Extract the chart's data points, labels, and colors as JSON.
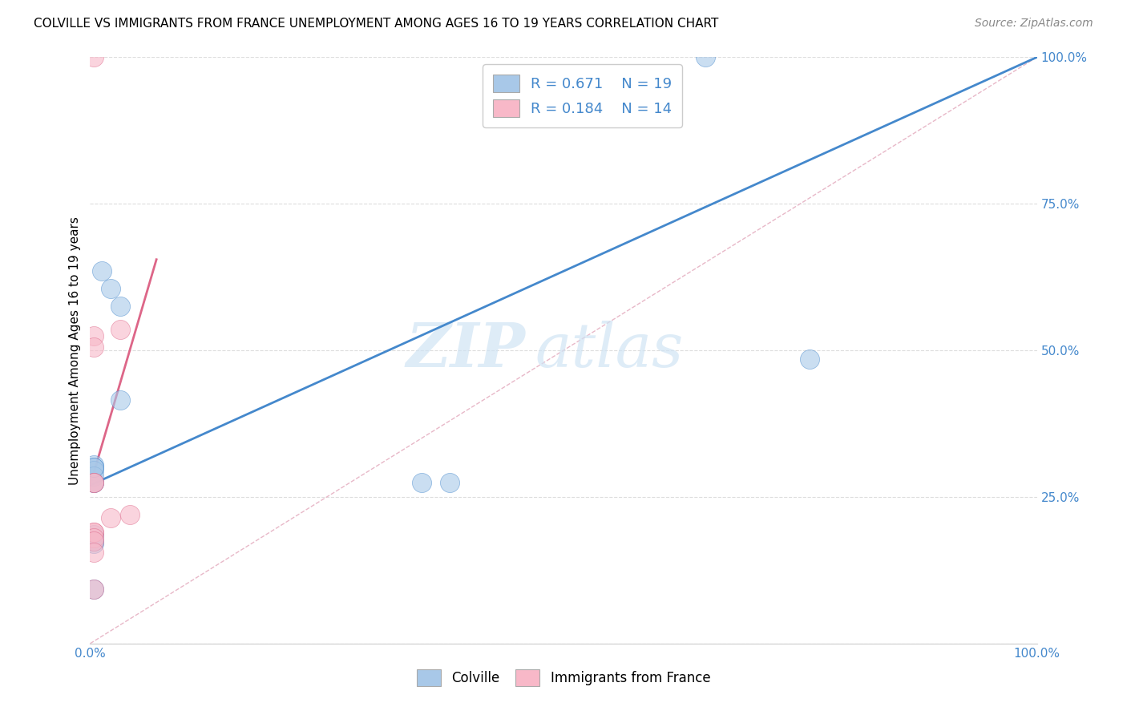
{
  "title": "COLVILLE VS IMMIGRANTS FROM FRANCE UNEMPLOYMENT AMONG AGES 16 TO 19 YEARS CORRELATION CHART",
  "source": "Source: ZipAtlas.com",
  "ylabel": "Unemployment Among Ages 16 to 19 years",
  "xlim": [
    0,
    1.0
  ],
  "ylim": [
    0,
    1.0
  ],
  "colville_R": "0.671",
  "colville_N": "19",
  "france_R": "0.184",
  "france_N": "14",
  "colville_color": "#a8c8e8",
  "france_color": "#f8b8c8",
  "colville_line_color": "#4488cc",
  "france_line_color": "#dd6688",
  "identity_line_color": "#e8b8c8",
  "watermark_zip": "ZIP",
  "watermark_atlas": "atlas",
  "colville_x": [
    0.004,
    0.012,
    0.022,
    0.032,
    0.032,
    0.004,
    0.004,
    0.004,
    0.004,
    0.004,
    0.35,
    0.38,
    0.76,
    0.65,
    0.004,
    0.004,
    0.004,
    0.004,
    0.004
  ],
  "colville_y": [
    0.305,
    0.635,
    0.605,
    0.575,
    0.415,
    0.3,
    0.295,
    0.285,
    0.275,
    0.275,
    0.275,
    0.275,
    0.485,
    1.0,
    0.3,
    0.185,
    0.17,
    0.175,
    0.093
  ],
  "france_x": [
    0.004,
    0.004,
    0.004,
    0.004,
    0.004,
    0.004,
    0.004,
    0.004,
    0.004,
    0.004,
    0.022,
    0.032,
    0.042,
    0.004
  ],
  "france_y": [
    1.0,
    0.525,
    0.505,
    0.275,
    0.275,
    0.19,
    0.19,
    0.18,
    0.175,
    0.155,
    0.215,
    0.535,
    0.22,
    0.093
  ],
  "colville_slope": 0.73,
  "colville_intercept": 0.27,
  "france_slope": 5.5,
  "france_intercept": 0.27,
  "france_line_xmax": 0.07
}
